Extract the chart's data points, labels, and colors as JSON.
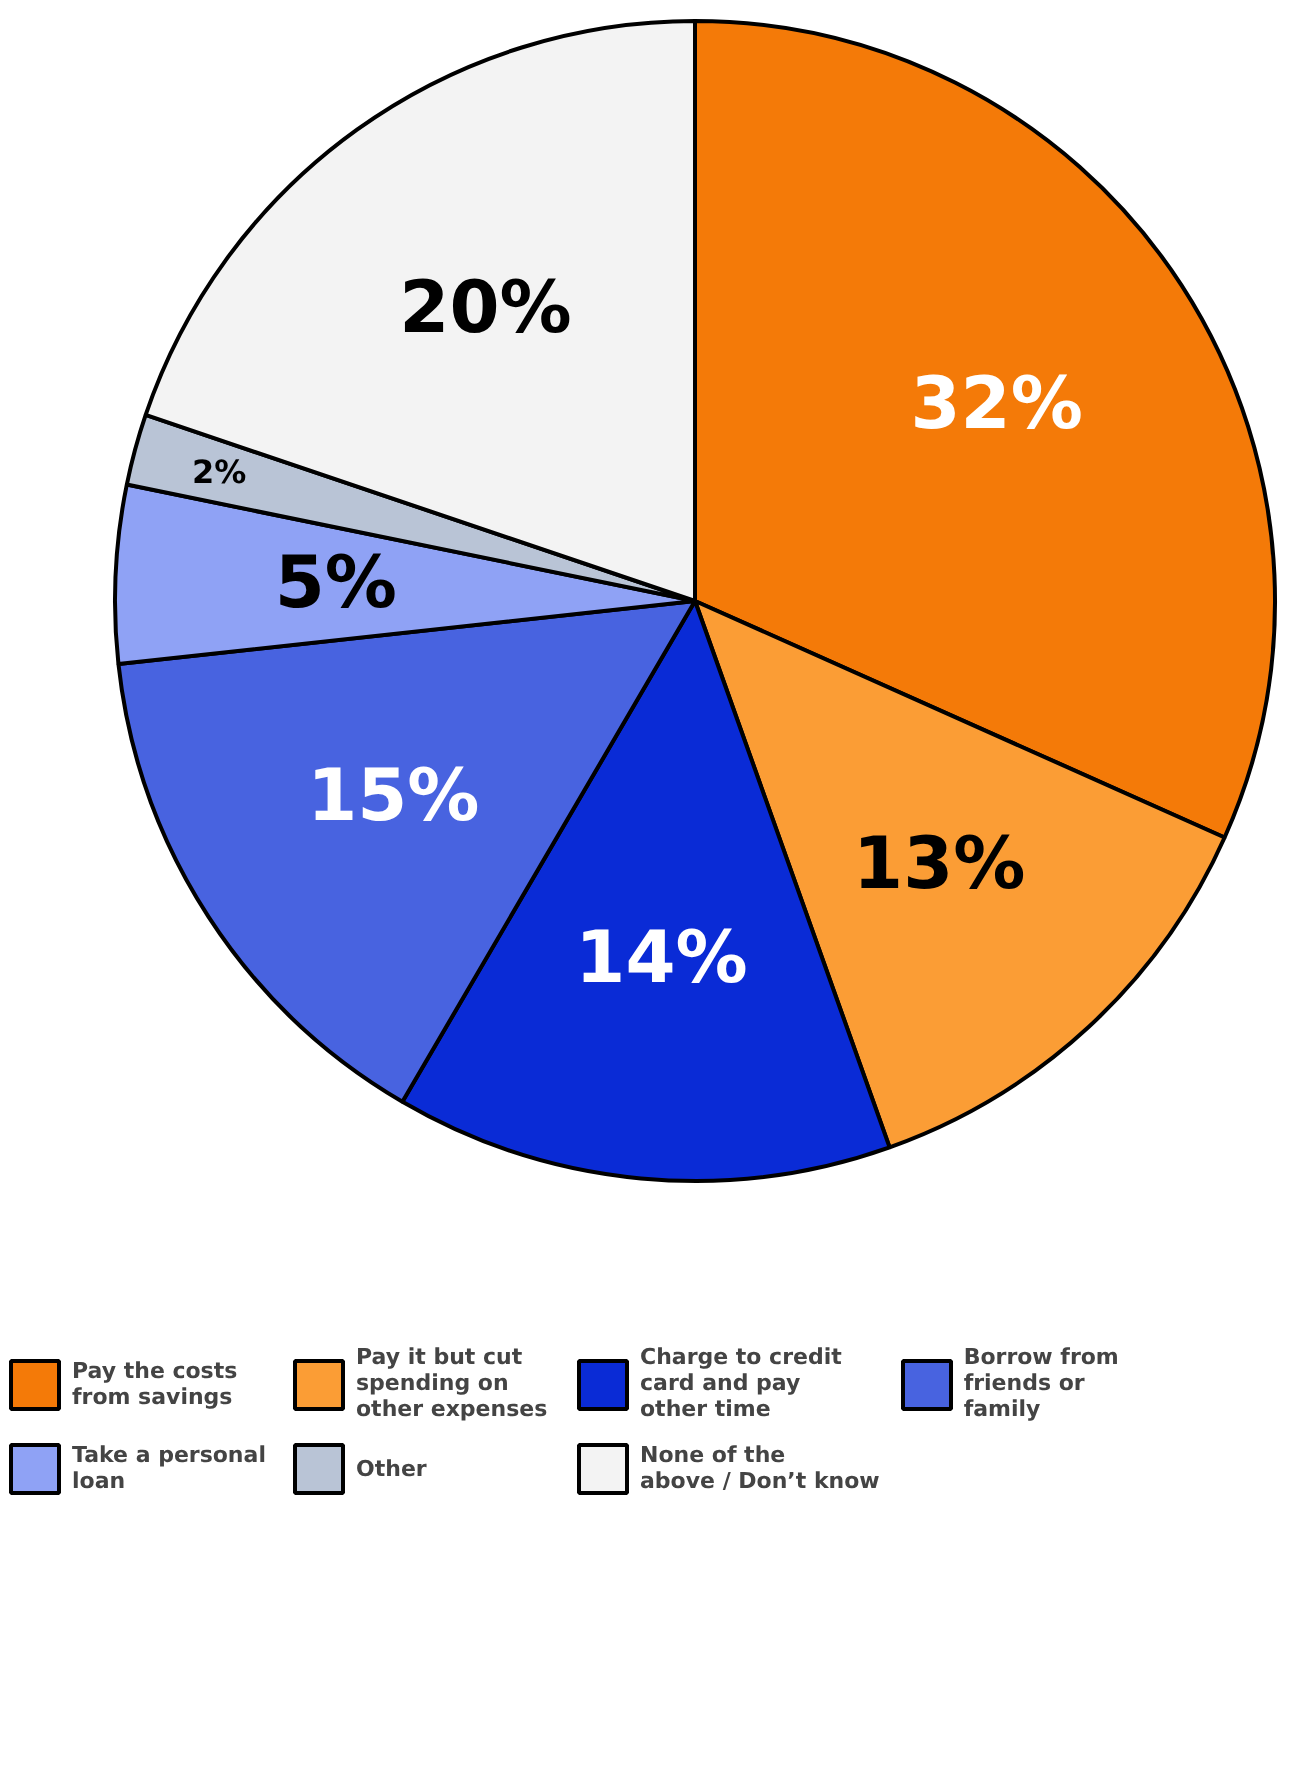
{
  "chart_data": {
    "type": "pie",
    "categories": [
      "Pay the costs\nfrom savings",
      "Pay it but cut\nspending on\nother expenses",
      "Charge to credit\ncard and pay\nother time",
      "Borrow from\nfriends or\nfamily",
      "Take a personal\nloan",
      "Other",
      "None of the\nabove / Don’t know"
    ],
    "values": [
      32,
      13,
      14,
      15,
      5,
      2,
      20
    ],
    "colors": [
      "#f47a08",
      "#fb9d35",
      "#0a2bd6",
      "#4863e0",
      "#8fa2f5",
      "#b9c4d6",
      "#f3f3f3"
    ],
    "value_labels": [
      "32%",
      "13%",
      "14%",
      "15%",
      "5%",
      "2%",
      "20%"
    ],
    "legend": "bottom"
  }
}
